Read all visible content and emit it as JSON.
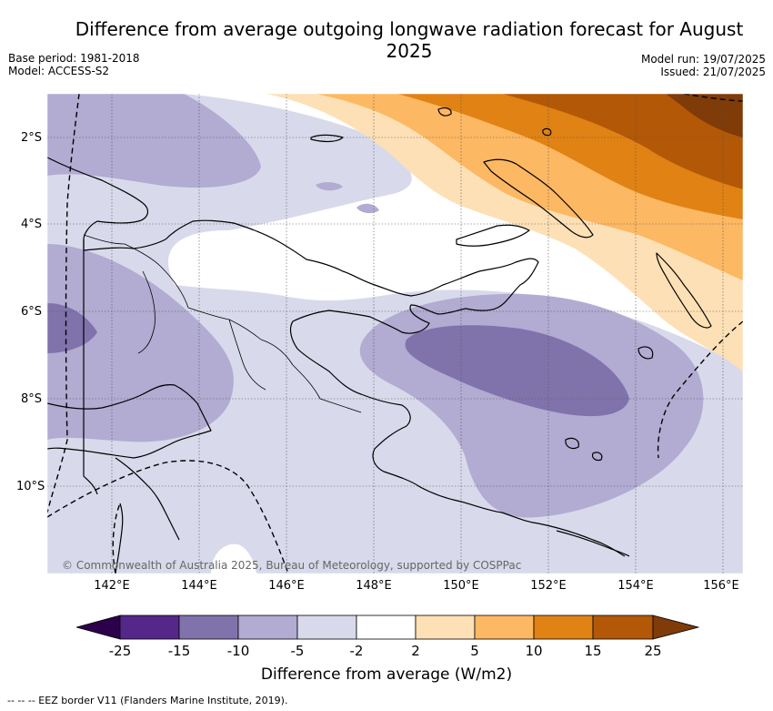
{
  "title": "Difference from average outgoing longwave radiation forecast for August 2025",
  "meta_left": {
    "base_period": "Base period: 1981-2018",
    "model": "Model: ACCESS-S2"
  },
  "meta_right": {
    "model_run": "Model run: 19/07/2025",
    "issued": "Issued: 21/07/2025"
  },
  "lat_ticks": [
    "2°S",
    "4°S",
    "6°S",
    "8°S",
    "10°S"
  ],
  "lon_ticks": [
    "142°E",
    "144°E",
    "146°E",
    "148°E",
    "150°E",
    "152°E",
    "154°E",
    "156°E"
  ],
  "copyright": "© Commonwealth of Australia 2025, Bureau of Meteorology, supported by COSPPac",
  "colorbar": {
    "title": "Difference from average (W/m2)",
    "labels": [
      "-25",
      "-15",
      "-10",
      "-5",
      "-2",
      "2",
      "5",
      "10",
      "15",
      "25"
    ],
    "colors": {
      "below_-25": "#2d004b",
      "-25_-15": "#542788",
      "-15_-10": "#8073ac",
      "-10_-5": "#b2abd2",
      "-5_-2": "#d8daeb",
      "-2_2": "#ffffff",
      "2_5": "#fee0b6",
      "5_10": "#fdb863",
      "10_15": "#e08214",
      "15_25": "#b35806",
      "above_25": "#7f3b08"
    }
  },
  "eez_note": "-- -- -- EEZ border V11 (Flanders Marine Institute, 2019)."
}
